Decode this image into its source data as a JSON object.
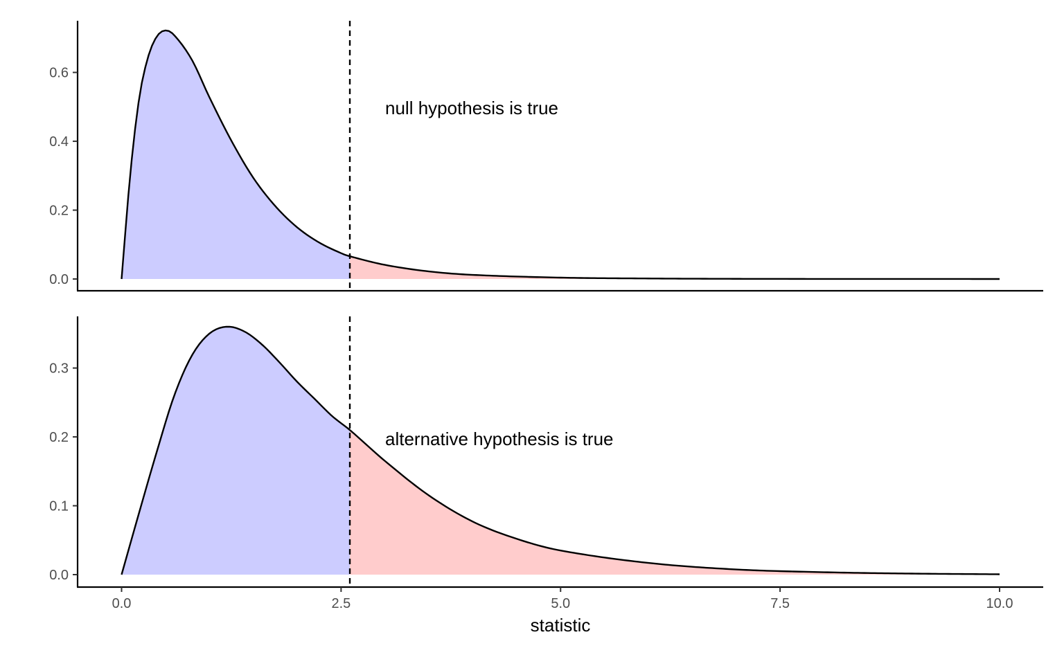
{
  "colors": {
    "below_critical": "#ccccff",
    "above_critical": "#ffcccc",
    "curve": "#000000",
    "critical_line": "#000000"
  },
  "chart_data": [
    {
      "type": "area",
      "panel": "top",
      "annotation": "null hypothesis is true",
      "x_range": [
        0,
        10
      ],
      "ylim": [
        0,
        0.75
      ],
      "yticks": [
        0.0,
        0.2,
        0.4,
        0.6
      ],
      "ytick_labels": [
        "0.0",
        "0.2",
        "0.4",
        "0.6"
      ],
      "critical_value": 2.6,
      "curve": {
        "x": [
          0,
          0.1,
          0.2,
          0.3,
          0.4,
          0.5,
          0.6,
          0.8,
          1.0,
          1.25,
          1.5,
          1.75,
          2.0,
          2.25,
          2.5,
          2.6,
          3.0,
          3.5,
          4.0,
          5.0,
          6.0,
          7.0,
          8.0,
          10.0
        ],
        "y": [
          0,
          0.307,
          0.524,
          0.643,
          0.704,
          0.722,
          0.708,
          0.637,
          0.528,
          0.402,
          0.294,
          0.212,
          0.15,
          0.106,
          0.075,
          0.066,
          0.041,
          0.022,
          0.012,
          0.004,
          0.0015,
          0.0005,
          0.0002,
          0
        ]
      }
    },
    {
      "type": "area",
      "panel": "bottom",
      "annotation": "alternative hypothesis is true",
      "x_range": [
        0,
        10
      ],
      "ylim": [
        0,
        0.375
      ],
      "yticks": [
        0.0,
        0.1,
        0.2,
        0.3
      ],
      "ytick_labels": [
        "0.0",
        "0.1",
        "0.2",
        "0.3"
      ],
      "xticks": [
        0,
        2.5,
        5,
        7.5,
        10
      ],
      "xtick_labels": [
        "0.0",
        "2.5",
        "5.0",
        "7.5",
        "10.0"
      ],
      "xlabel": "statistic",
      "critical_value": 2.6,
      "curve": {
        "x": [
          0,
          0.2,
          0.4,
          0.6,
          0.8,
          1.0,
          1.2,
          1.4,
          1.6,
          1.8,
          2.0,
          2.2,
          2.4,
          2.6,
          3.0,
          3.5,
          4.0,
          4.5,
          5.0,
          6.0,
          7.0,
          8.0,
          9.0,
          10.0
        ],
        "y": [
          0,
          0.09,
          0.178,
          0.26,
          0.318,
          0.35,
          0.36,
          0.353,
          0.334,
          0.308,
          0.28,
          0.255,
          0.23,
          0.21,
          0.165,
          0.115,
          0.077,
          0.052,
          0.035,
          0.017,
          0.0075,
          0.0035,
          0.0015,
          0.0005
        ]
      }
    }
  ]
}
